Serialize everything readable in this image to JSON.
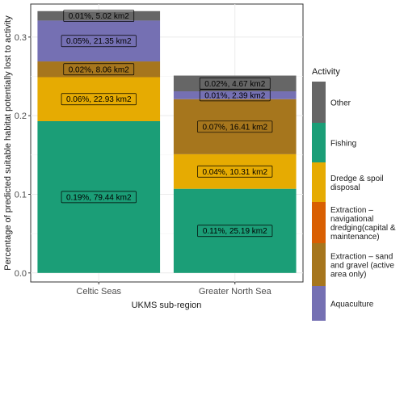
{
  "chart_data": {
    "type": "bar",
    "stacked": true,
    "title": "",
    "xlabel": "UKMS sub-region",
    "ylabel": "Percentage of predicted suitable habitat potentially lost to activity",
    "ylim": [
      -0.0115,
      0.342
    ],
    "yticks": [
      0.0,
      0.1,
      0.2,
      0.3
    ],
    "yticklabels": [
      "0.0",
      "0.1",
      "0.2",
      "0.3"
    ],
    "grid": true,
    "legend_position": "right",
    "legend_title": "Activity",
    "categories": [
      "Celtic Seas",
      "Greater North Sea"
    ],
    "series": [
      {
        "name": "Fishing",
        "color": "#1b9e77",
        "values": [
          0.193,
          0.107
        ],
        "labels": [
          "0.19%, 79.44 km2",
          "0.11%, 25.19 km2"
        ]
      },
      {
        "name": "Dredge & spoil disposal",
        "color": "#e6ab02",
        "values": [
          0.056,
          0.044
        ],
        "labels": [
          "0.06%, 22.93 km2",
          "0.04%, 10.31 km2"
        ]
      },
      {
        "name": "Extraction – navigational dredging(capital & maintenance)",
        "color": "#d95f02",
        "values": [
          0,
          0
        ],
        "labels": [
          "",
          ""
        ]
      },
      {
        "name": "Extraction – sand and gravel (active area only)",
        "color": "#a6761d",
        "values": [
          0.02,
          0.07
        ],
        "labels": [
          "0.02%, 8.06 km2",
          "0.07%, 16.41 km2"
        ]
      },
      {
        "name": "Aquaculture",
        "color": "#7570b3",
        "values": [
          0.052,
          0.01
        ],
        "labels": [
          "0.05%, 21.35 km2",
          "0.01%, 2.39 km2"
        ]
      },
      {
        "name": "Other",
        "color": "#666666",
        "values": [
          0.012,
          0.02
        ],
        "labels": [
          "0.01%, 5.02 km2",
          "0.02%, 4.67 km2"
        ]
      }
    ],
    "legend_order": [
      "Other",
      "Fishing",
      "Dredge & spoil disposal",
      "Extraction – navigational dredging(capital & maintenance)",
      "Extraction – sand and gravel (active area only)",
      "Aquaculture"
    ],
    "legend_lines": {
      "Other": [
        "Other"
      ],
      "Fishing": [
        "Fishing"
      ],
      "Dredge & spoil disposal": [
        "Dredge & spoil",
        "disposal"
      ],
      "Extraction – navigational dredging(capital & maintenance)": [
        "Extraction –",
        "navigational",
        "dredging(capital &",
        "maintenance)"
      ],
      "Extraction – sand and gravel (active area only)": [
        "Extraction – sand",
        "and gravel (active",
        "area only)"
      ],
      "Aquaculture": [
        "Aquaculture"
      ]
    }
  }
}
